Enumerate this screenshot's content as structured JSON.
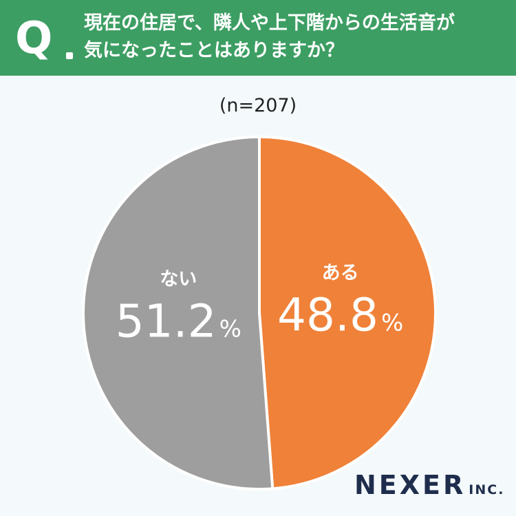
{
  "question": {
    "marker": "Q",
    "lines": [
      "現在の住居で、隣人や上下階からの生活音が",
      "気になったことはありますか？"
    ]
  },
  "sample_label": "(n=207)",
  "chart_data": {
    "type": "pie",
    "slices": [
      {
        "label": "ある",
        "value": 48.8,
        "value_label": "48.8",
        "unit": "%",
        "color": "#ef8139"
      },
      {
        "label": "ない",
        "value": 51.2,
        "value_label": "51.2",
        "unit": "%",
        "color": "#9e9e9e"
      }
    ],
    "start": "top",
    "direction": "clockwise"
  },
  "logo": {
    "main": "NEXER",
    "sub": "INC."
  },
  "colors": {
    "header": "#3d9e63",
    "background": "#f4fafb",
    "logo": "#1f2d4d"
  }
}
